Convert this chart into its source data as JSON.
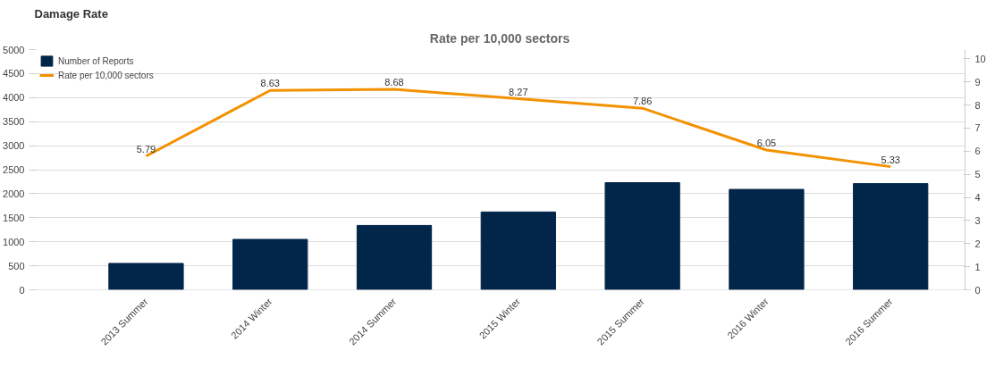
{
  "chart_data": {
    "type": "bar",
    "title": "Damage Rate",
    "subtitle": "Rate per 10,000 sectors",
    "categories": [
      "2013 Summer",
      "2014 Winter",
      "2014 Summer",
      "2015 Winter",
      "2015 Summer",
      "2016 Winter",
      "2016 Summer"
    ],
    "series": [
      {
        "name": "Number of Reports",
        "color": "#022649",
        "values": [
          550,
          1050,
          1340,
          1620,
          2230,
          2090,
          2210
        ]
      },
      {
        "name": "Rate per 10,000 sectors",
        "type": "line",
        "axis": "y2",
        "color": "#f39200",
        "values": [
          5.79,
          8.63,
          8.68,
          8.27,
          7.86,
          6.05,
          5.33
        ],
        "value_labels": [
          "5.79",
          "8.63",
          "8.68",
          "8.27",
          "7.86",
          "6.05",
          "5.33"
        ]
      }
    ],
    "ylim": [
      0,
      5000
    ],
    "yticks": [
      0,
      500,
      1000,
      1500,
      2000,
      2500,
      3000,
      3500,
      4000,
      4500,
      5000
    ],
    "y2lim": [
      0,
      10.4
    ],
    "y2ticks": [
      0,
      1,
      2,
      3,
      4,
      5,
      6,
      7,
      8,
      9,
      10
    ],
    "grid": "y",
    "legend": "top left",
    "marker": "none",
    "line_style": "solid"
  }
}
